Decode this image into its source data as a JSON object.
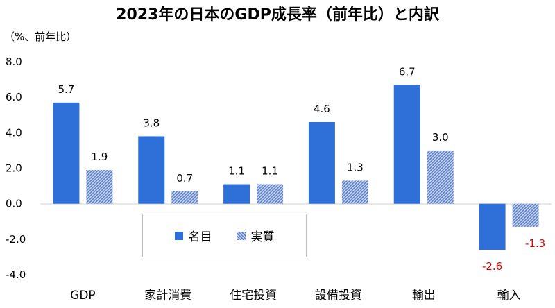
{
  "chart_data": {
    "type": "bar",
    "title": "2023年の日本のGDP成長率（前年比）と内訳",
    "ylabel": "（%、前年比）",
    "xlabel": "",
    "ylim": [
      -4.0,
      8.0
    ],
    "yticks": [
      "8.0",
      "6.0",
      "4.0",
      "2.0",
      "0.0",
      "-2.0",
      "-4.0"
    ],
    "categories": [
      "GDP",
      "家計消費",
      "住宅投資",
      "設備投資",
      "輸出",
      "輸入"
    ],
    "series": [
      {
        "name": "名目",
        "values": [
          5.7,
          3.8,
          1.1,
          4.6,
          6.7,
          -2.6
        ],
        "labels": [
          "5.7",
          "3.8",
          "1.1",
          "4.6",
          "6.7",
          "-2.6"
        ],
        "color": "#2f6fd8"
      },
      {
        "name": "実質",
        "values": [
          1.9,
          0.7,
          1.1,
          1.3,
          3.0,
          -1.3
        ],
        "labels": [
          "1.9",
          "0.7",
          "1.1",
          "1.3",
          "3.0",
          "-1.3"
        ],
        "color": "#5b7fc9",
        "pattern": "hatched"
      }
    ],
    "negative_label_color": "#e00000",
    "grid": false,
    "legend_position": "bottom-center-inside"
  }
}
